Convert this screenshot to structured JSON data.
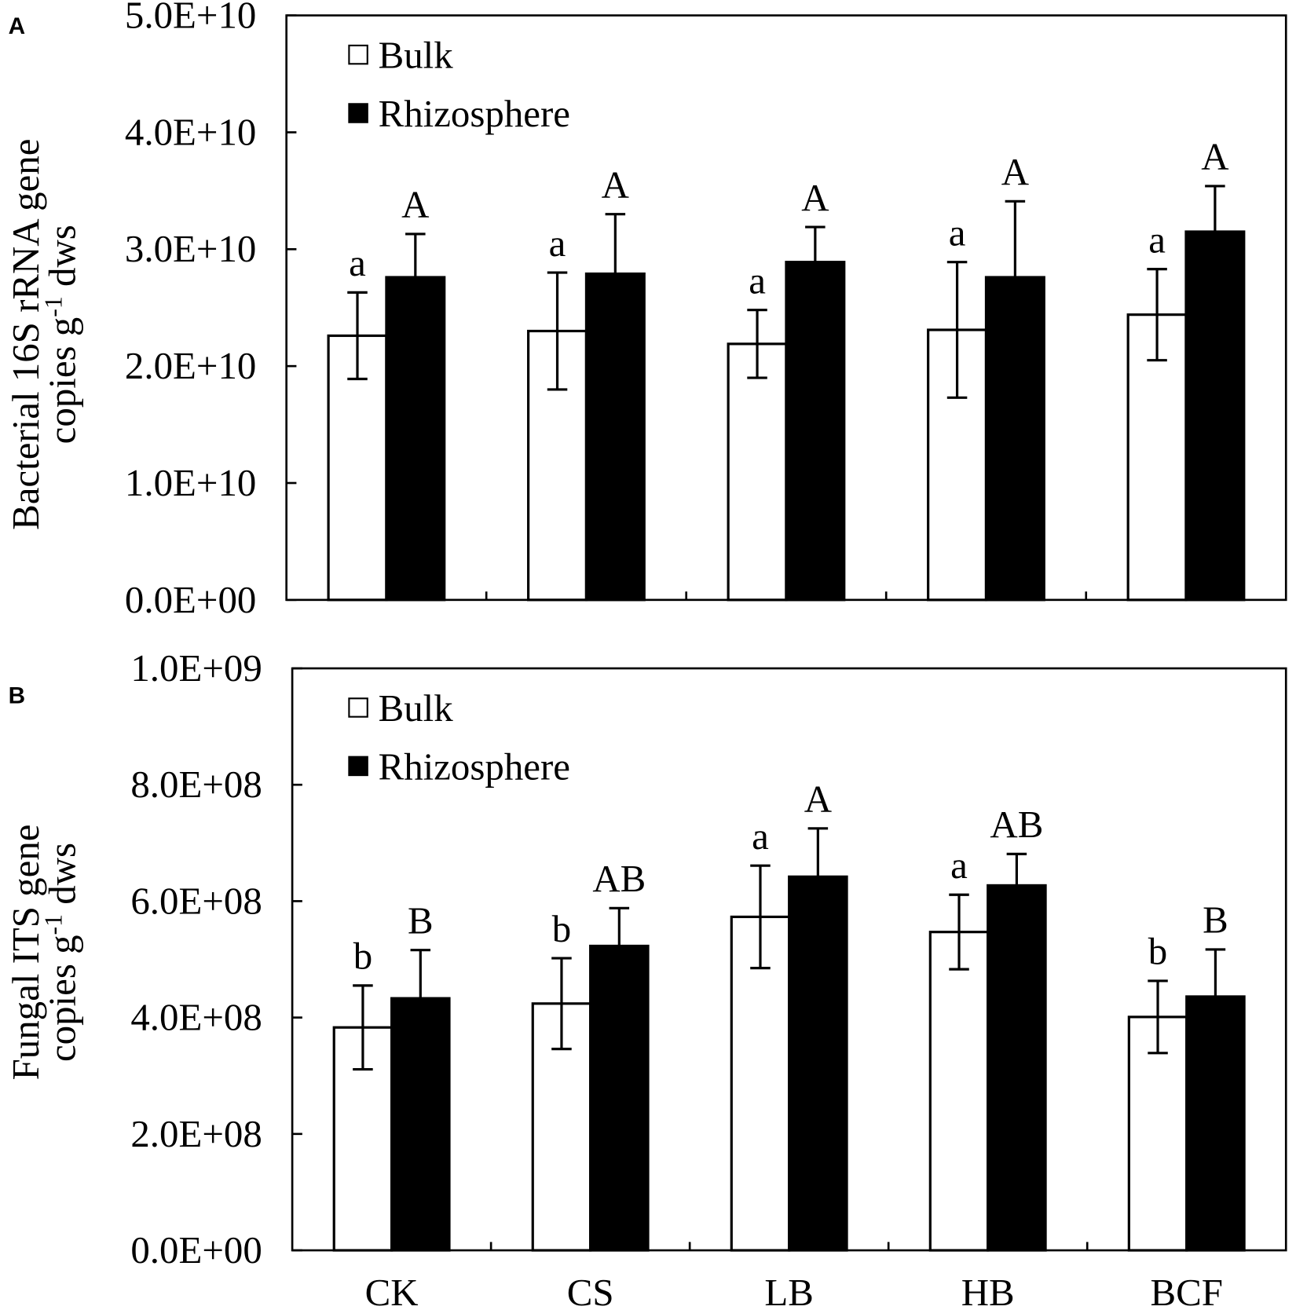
{
  "chart_data": {
    "type": "bar",
    "categories": [
      "CK",
      "CS",
      "LB",
      "HB",
      "BCF"
    ],
    "legend_position": "top-left",
    "panels": [
      {
        "panel_label": "A",
        "ylabel": {
          "line1": "Bacterial 16S rRNA gene",
          "line2_main": "copies g",
          "line2_sup": "-1",
          "line2_tail": " dws"
        },
        "ylim": [
          0,
          50000000000
        ],
        "yticks": [
          0,
          10000000000,
          20000000000,
          30000000000,
          40000000000,
          50000000000
        ],
        "ytick_labels": [
          "0.0E+00",
          "1.0E+10",
          "2.0E+10",
          "3.0E+10",
          "4.0E+10",
          "5.0E+10"
        ],
        "series": [
          {
            "name": "Bulk",
            "color": "#ffffff",
            "values": [
              22600000000,
              23000000000,
              21900000000,
              23100000000,
              24400000000
            ],
            "errors": [
              3700000000,
              5000000000,
              2900000000,
              5800000000,
              3900000000
            ],
            "letters": [
              "a",
              "a",
              "a",
              "a",
              "a"
            ]
          },
          {
            "name": "Rhizosphere",
            "color": "#000000",
            "values": [
              27600000000,
              27900000000,
              28900000000,
              27600000000,
              31500000000
            ],
            "errors": [
              3700000000,
              5100000000,
              3000000000,
              6500000000,
              3900000000
            ],
            "letters": [
              "A",
              "A",
              "A",
              "A",
              "A"
            ]
          }
        ]
      },
      {
        "panel_label": "B",
        "ylabel": {
          "line1": "Fungal ITS gene",
          "line2_main": "copies g",
          "line2_sup": "-1",
          "line2_tail": " dws"
        },
        "ylim": [
          0,
          1000000000
        ],
        "yticks": [
          0,
          200000000,
          400000000,
          600000000,
          800000000,
          1000000000
        ],
        "ytick_labels": [
          "0.0E+00",
          "2.0E+08",
          "4.0E+08",
          "6.0E+08",
          "8.0E+08",
          "1.0E+09"
        ],
        "series": [
          {
            "name": "Bulk",
            "color": "#ffffff",
            "values": [
              383000000,
              424000000,
              573000000,
              547000000,
              401000000
            ],
            "errors": [
              72000000,
              78000000,
              88000000,
              64000000,
              62000000
            ],
            "letters": [
              "b",
              "b",
              "a",
              "a",
              "b"
            ]
          },
          {
            "name": "Rhizosphere",
            "color": "#000000",
            "values": [
              433000000,
              523000000,
              642000000,
              627000000,
              436000000
            ],
            "errors": [
              83000000,
              65000000,
              83000000,
              54000000,
              81000000
            ],
            "letters": [
              "B",
              "AB",
              "A",
              "AB",
              "B"
            ]
          }
        ]
      }
    ]
  }
}
